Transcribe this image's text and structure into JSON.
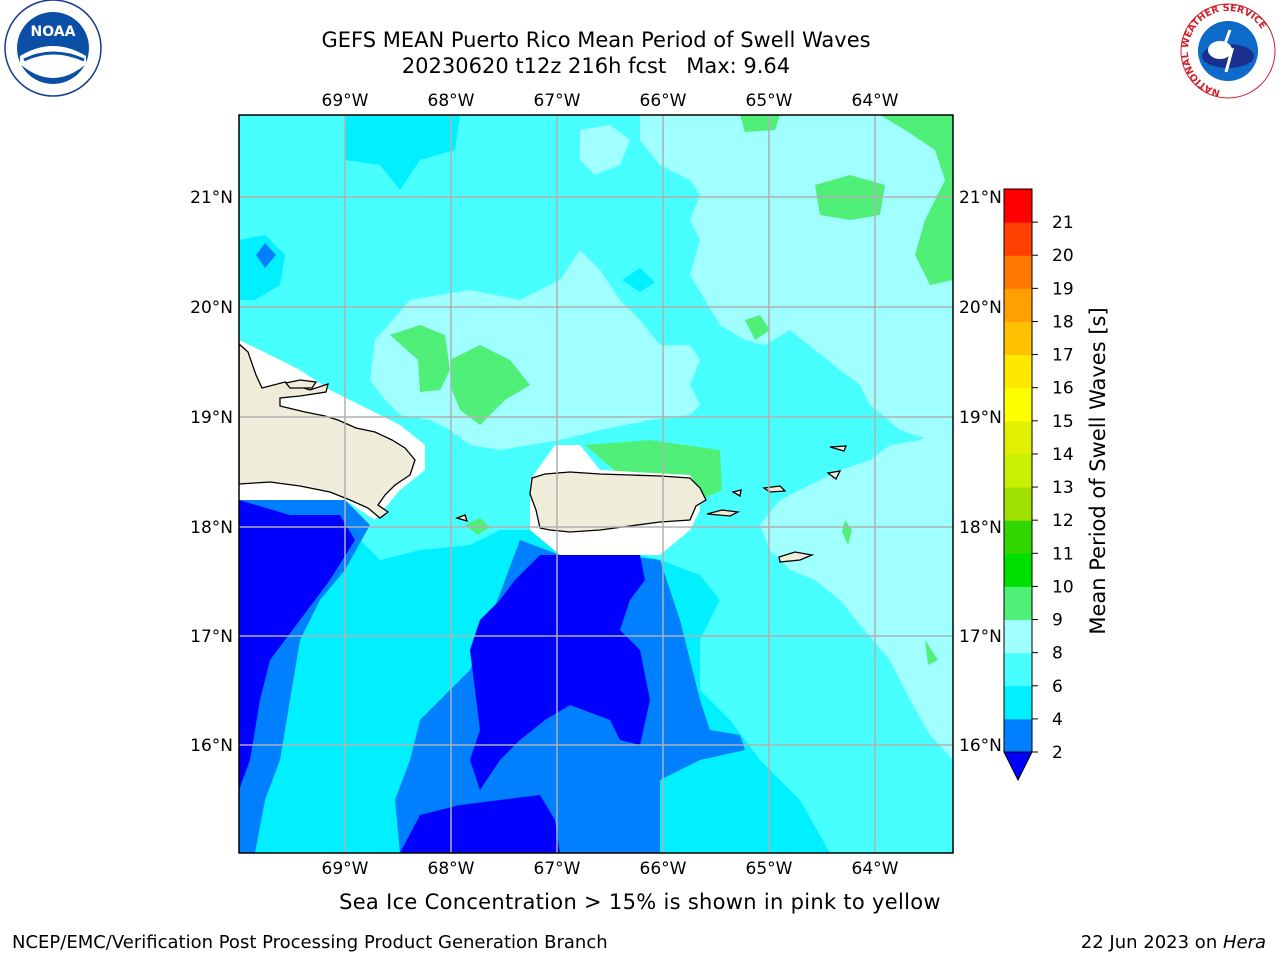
{
  "header": {
    "title_line1": "GEFS MEAN Puerto Rico Mean Period of Swell Waves",
    "title_line2": "20230620 t12z 216h fcst   Max: 9.64"
  },
  "logos": {
    "left": {
      "text": "NOAA",
      "ring": "NATIONAL OCEANIC AND ATMOSPHERIC ADMINISTRATION · U.S. DEPARTMENT OF COMMERCE"
    },
    "right": {
      "ring": "NATIONAL WEATHER SERVICE"
    }
  },
  "map": {
    "lon_labels": [
      "69°W",
      "68°W",
      "67°W",
      "66°W",
      "65°W",
      "64°W"
    ],
    "lat_labels": [
      "21°N",
      "20°N",
      "19°N",
      "18°N",
      "17°N",
      "16°N"
    ],
    "fill_colors": {
      "lt2": "#0000ff",
      "2to4": "#0080ff",
      "4to6": "#00f0ff",
      "6to8": "#48ffff",
      "8to9": "#a0ffff",
      "9to10": "#50f078",
      "land": "#efedda"
    }
  },
  "colorbar": {
    "label": "Mean Period of Swell Waves [s]",
    "ticks": [
      "2",
      "4",
      "6",
      "8",
      "9",
      "10",
      "11",
      "12",
      "13",
      "14",
      "15",
      "16",
      "17",
      "18",
      "19",
      "20",
      "21"
    ],
    "colors": [
      "#0080ff",
      "#00f0ff",
      "#48ffff",
      "#a0ffff",
      "#50f078",
      "#00e000",
      "#30d800",
      "#a0e000",
      "#c8f000",
      "#e0f000",
      "#ffff00",
      "#ffe800",
      "#ffc000",
      "#ffa000",
      "#ff7800",
      "#ff4000",
      "#ff0000"
    ],
    "extend_low_color": "#0000ff"
  },
  "footer": {
    "note": "Sea Ice Concentration > 15% is shown in pink to yellow",
    "credit_left": "NCEP/EMC/Verification Post Processing Product Generation Branch",
    "credit_right_date": "22 Jun 2023 on ",
    "credit_right_host": "Hera"
  }
}
